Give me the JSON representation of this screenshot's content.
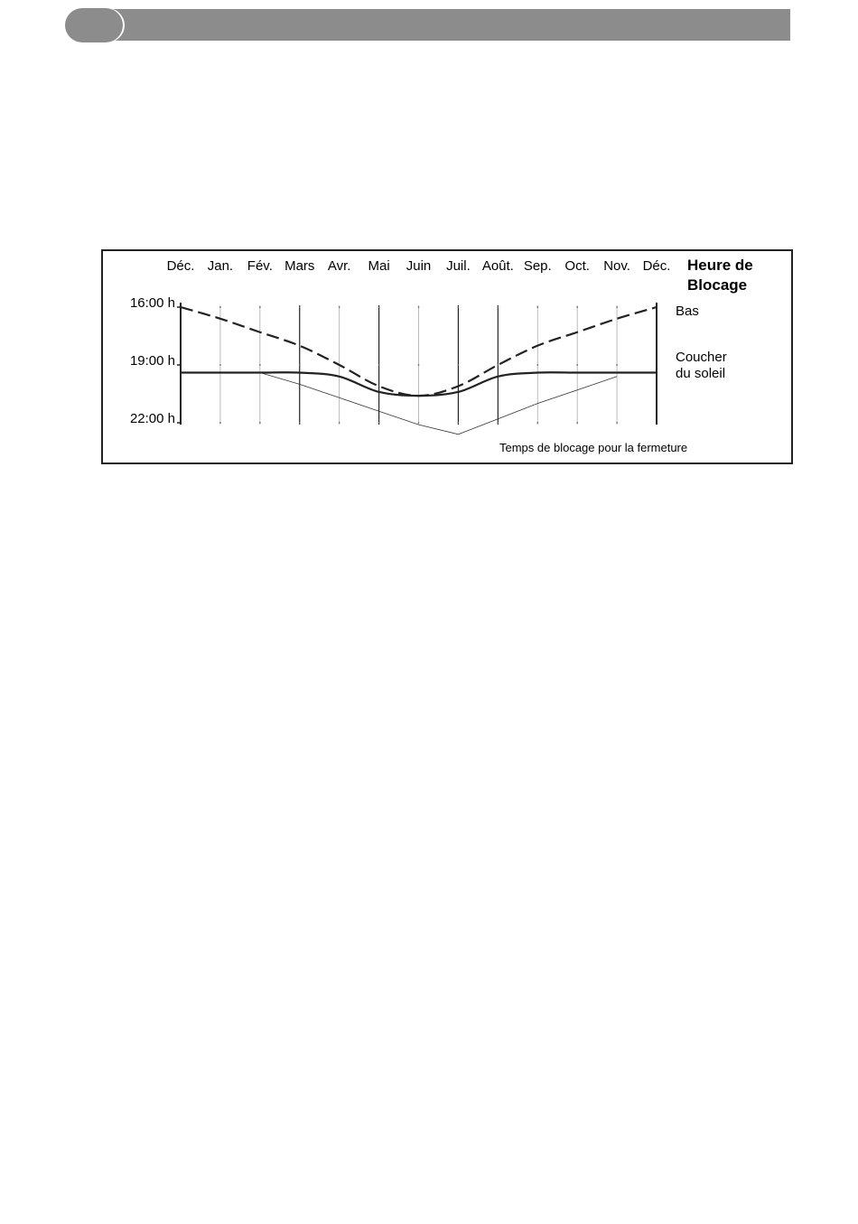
{
  "chart_data": {
    "type": "line",
    "categories": [
      "Déc.",
      "Jan.",
      "Fév.",
      "Mars",
      "Avr.",
      "Mai",
      "Juin",
      "Juil.",
      "Août.",
      "Sep.",
      "Oct.",
      "Nov.",
      "Déc."
    ],
    "y_ticks": [
      "16:00 h",
      "19:00 h",
      "22:00 h"
    ],
    "legend_title": [
      "Heure de",
      "Blocage"
    ],
    "legend": {
      "bas": "Bas",
      "coucher": [
        "Coucher",
        "du soleil"
      ]
    },
    "annotation": "Temps de blocage pour la fermeture",
    "series": [
      {
        "name": "Bas",
        "style": "dashed",
        "values": [
          16.0,
          16.6,
          17.3,
          18.0,
          19.0,
          20.1,
          20.6,
          20.1,
          19.0,
          18.0,
          17.3,
          16.6,
          16.0
        ]
      },
      {
        "name": "Coucher du soleil",
        "style": "solid",
        "values": [
          19.4,
          19.4,
          19.4,
          19.4,
          19.6,
          20.4,
          20.6,
          20.4,
          19.6,
          19.4,
          19.4,
          19.4,
          19.4
        ]
      },
      {
        "name": "Temps de blocage pour la fermeture",
        "style": "thin",
        "values": [
          null,
          null,
          19.4,
          20.0,
          20.7,
          21.4,
          22.1,
          22.6,
          21.8,
          21.0,
          20.3,
          19.6,
          null
        ]
      }
    ],
    "ylim": [
      16,
      22
    ],
    "y_inverted": true
  },
  "colors": {
    "header": "#8c8c8c",
    "ink": "#222222"
  }
}
